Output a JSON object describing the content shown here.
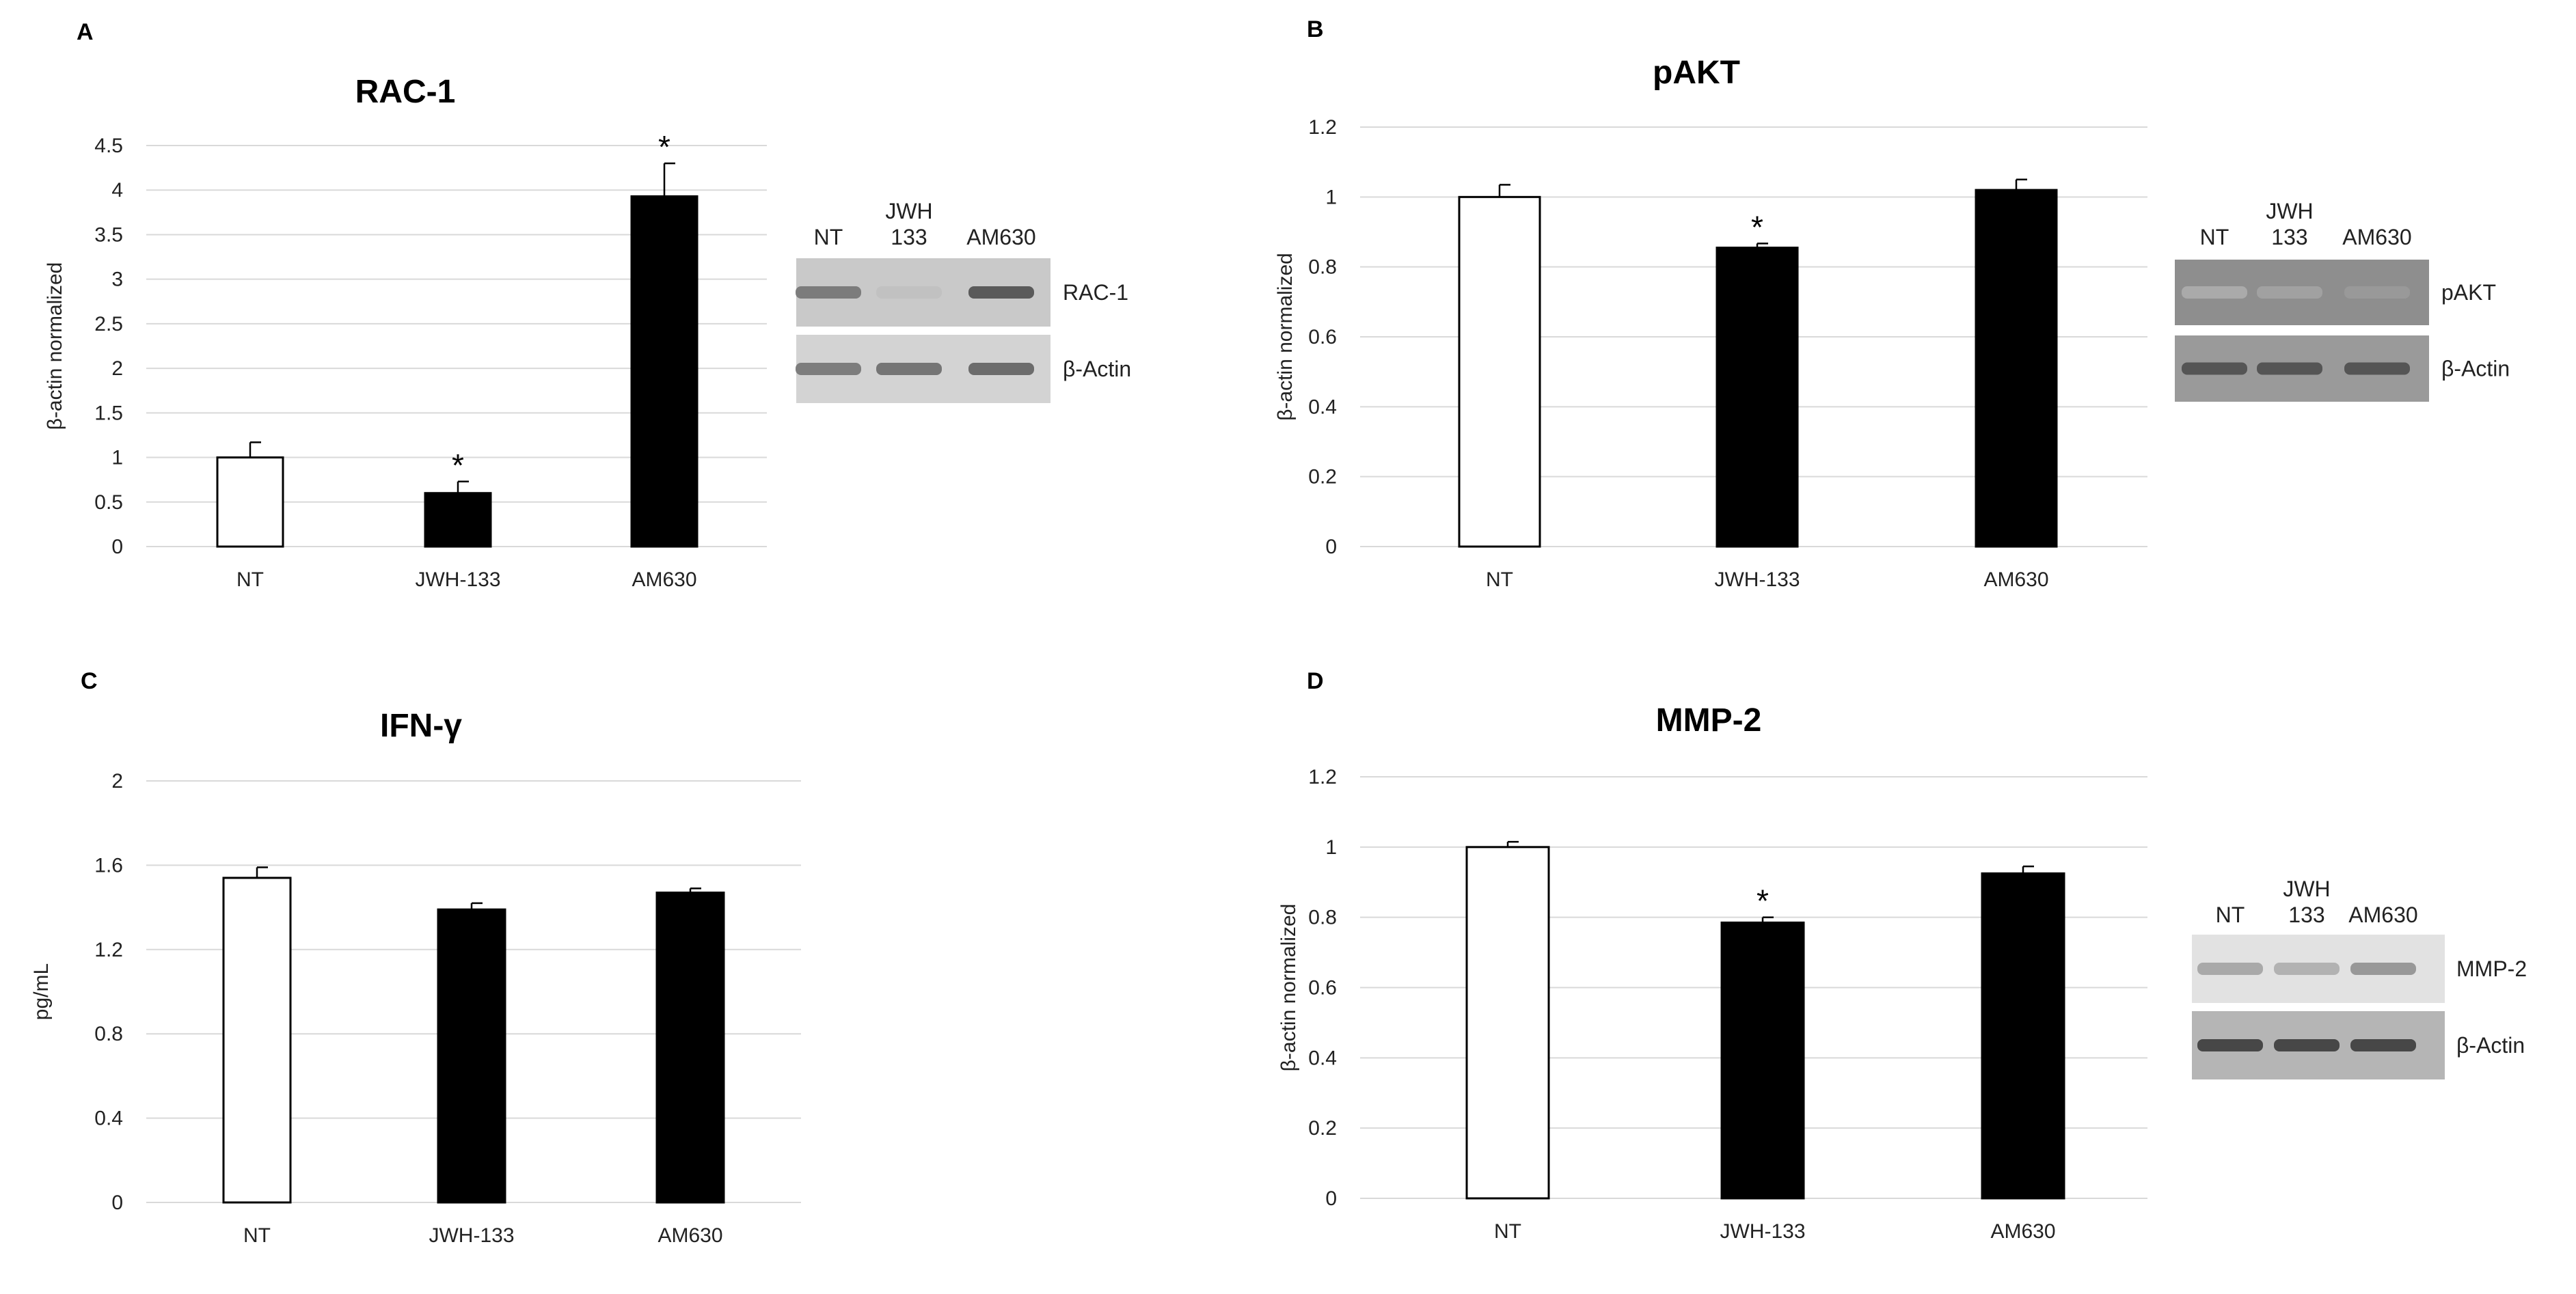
{
  "chart_data": [
    {
      "panel": "A",
      "type": "bar",
      "title": "RAC-1",
      "ylabel": "β-actin normalized",
      "categories": [
        "NT",
        "JWH-133",
        "AM630"
      ],
      "values": [
        1.0,
        0.6,
        3.93
      ],
      "errors": [
        0.17,
        0.13,
        0.37
      ],
      "significant": [
        "",
        "*",
        "*"
      ],
      "bar_colors": [
        "#ffffff",
        "#000000",
        "#000000"
      ],
      "ylim": [
        0,
        4.5
      ],
      "yticks": [
        0,
        0.5,
        1,
        1.5,
        2,
        2.5,
        3,
        3.5,
        4,
        4.5
      ],
      "ytick_labels": [
        "0",
        "0.5",
        "1",
        "1.5",
        "2",
        "2.5",
        "3",
        "3.5",
        "4",
        "4.5"
      ],
      "blot": {
        "lanes": [
          "NT",
          "JWH\n133",
          "AM630"
        ],
        "rows": [
          {
            "label": "RAC-1",
            "band_intensity": [
              0.55,
              0.15,
              0.75
            ],
            "bg": "#c9c9c9"
          },
          {
            "label": "β-Actin",
            "band_intensity": [
              0.55,
              0.6,
              0.65
            ],
            "bg": "#d3d3d3"
          }
        ]
      }
    },
    {
      "panel": "B",
      "type": "bar",
      "title": "pAKT",
      "ylabel": "β-actin normalized",
      "categories": [
        "NT",
        "JWH-133",
        "AM630"
      ],
      "values": [
        1.0,
        0.855,
        1.02
      ],
      "errors": [
        0.035,
        0.012,
        0.03
      ],
      "significant": [
        "",
        "*",
        ""
      ],
      "bar_colors": [
        "#ffffff",
        "#000000",
        "#000000"
      ],
      "ylim": [
        0,
        1.2
      ],
      "yticks": [
        0,
        0.2,
        0.4,
        0.6,
        0.8,
        1,
        1.2
      ],
      "ytick_labels": [
        "0",
        "0.2",
        "0.4",
        "0.6",
        "0.8",
        "1",
        "1.2"
      ],
      "blot": {
        "lanes": [
          "NT",
          "JWH\n133",
          "AM630"
        ],
        "rows": [
          {
            "label": "pAKT",
            "band_intensity": [
              0.25,
              0.3,
              0.35
            ],
            "bg": "#8e8e8e"
          },
          {
            "label": "β-Actin",
            "band_intensity": [
              0.75,
              0.75,
              0.75
            ],
            "bg": "#9a9a9a"
          }
        ]
      }
    },
    {
      "panel": "C",
      "type": "bar",
      "title": "IFN-γ",
      "ylabel": "pg/mL",
      "categories": [
        "NT",
        "JWH-133",
        "AM630"
      ],
      "values": [
        1.54,
        1.39,
        1.47
      ],
      "errors": [
        0.05,
        0.03,
        0.02
      ],
      "significant": [
        "",
        "",
        ""
      ],
      "bar_colors": [
        "#ffffff",
        "#000000",
        "#000000"
      ],
      "ylim": [
        0,
        2
      ],
      "yticks": [
        0,
        0.4,
        0.8,
        1.2,
        1.6,
        2
      ],
      "ytick_labels": [
        "0",
        "0.4",
        "0.8",
        "1.2",
        "1.6",
        "2"
      ],
      "blot": null
    },
    {
      "panel": "D",
      "type": "bar",
      "title": "MMP-2",
      "ylabel": "β-actin normalized",
      "categories": [
        "NT",
        "JWH-133",
        "AM630"
      ],
      "values": [
        1.0,
        0.785,
        0.925
      ],
      "errors": [
        0.015,
        0.015,
        0.02
      ],
      "significant": [
        "",
        "*",
        ""
      ],
      "bar_colors": [
        "#ffffff",
        "#000000",
        "#000000"
      ],
      "ylim": [
        0,
        1.2
      ],
      "yticks": [
        0,
        0.2,
        0.4,
        0.6,
        0.8,
        1,
        1.2
      ],
      "ytick_labels": [
        "0",
        "0.2",
        "0.4",
        "0.6",
        "0.8",
        "1",
        "1.2"
      ],
      "blot": {
        "lanes": [
          "NT",
          "JWH\n133",
          "AM630"
        ],
        "rows": [
          {
            "label": "MMP-2",
            "band_intensity": [
              0.3,
              0.25,
              0.4
            ],
            "bg": "#e2e2e2"
          },
          {
            "label": "β-Actin",
            "band_intensity": [
              0.85,
              0.85,
              0.85
            ],
            "bg": "#b5b5b5"
          }
        ]
      }
    }
  ]
}
